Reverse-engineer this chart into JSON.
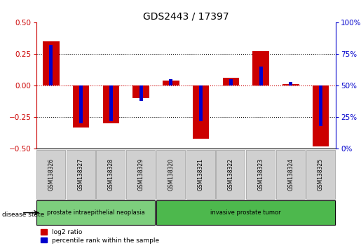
{
  "title": "GDS2443 / 17397",
  "samples": [
    "GSM138326",
    "GSM138327",
    "GSM138328",
    "GSM138329",
    "GSM138320",
    "GSM138321",
    "GSM138322",
    "GSM138323",
    "GSM138324",
    "GSM138325"
  ],
  "log2_ratio": [
    0.35,
    -0.33,
    -0.3,
    -0.1,
    0.04,
    -0.42,
    0.06,
    0.27,
    0.01,
    -0.48
  ],
  "percentile_rank": [
    82,
    20,
    22,
    38,
    55,
    22,
    55,
    65,
    53,
    18
  ],
  "groups": [
    {
      "label": "prostate intraepithelial neoplasia",
      "start": 0,
      "end": 4,
      "color": "#7dce7d"
    },
    {
      "label": "invasive prostate tumor",
      "start": 4,
      "end": 10,
      "color": "#4db84d"
    }
  ],
  "bar_color_red": "#cc0000",
  "bar_color_blue": "#0000cc",
  "ylim_left": [
    -0.5,
    0.5
  ],
  "ylim_right": [
    0,
    100
  ],
  "yticks_left": [
    -0.5,
    -0.25,
    0,
    0.25,
    0.5
  ],
  "yticks_right": [
    0,
    25,
    50,
    75,
    100
  ],
  "ylabel_left_color": "#cc0000",
  "ylabel_right_color": "#0000cc",
  "background_color": "#ffffff",
  "title_fontsize": 10,
  "tick_fontsize": 7.5,
  "disease_state_label": "disease state",
  "legend_red_label": "log2 ratio",
  "legend_blue_label": "percentile rank within the sample",
  "red_bar_width": 0.55,
  "blue_bar_width": 0.12
}
